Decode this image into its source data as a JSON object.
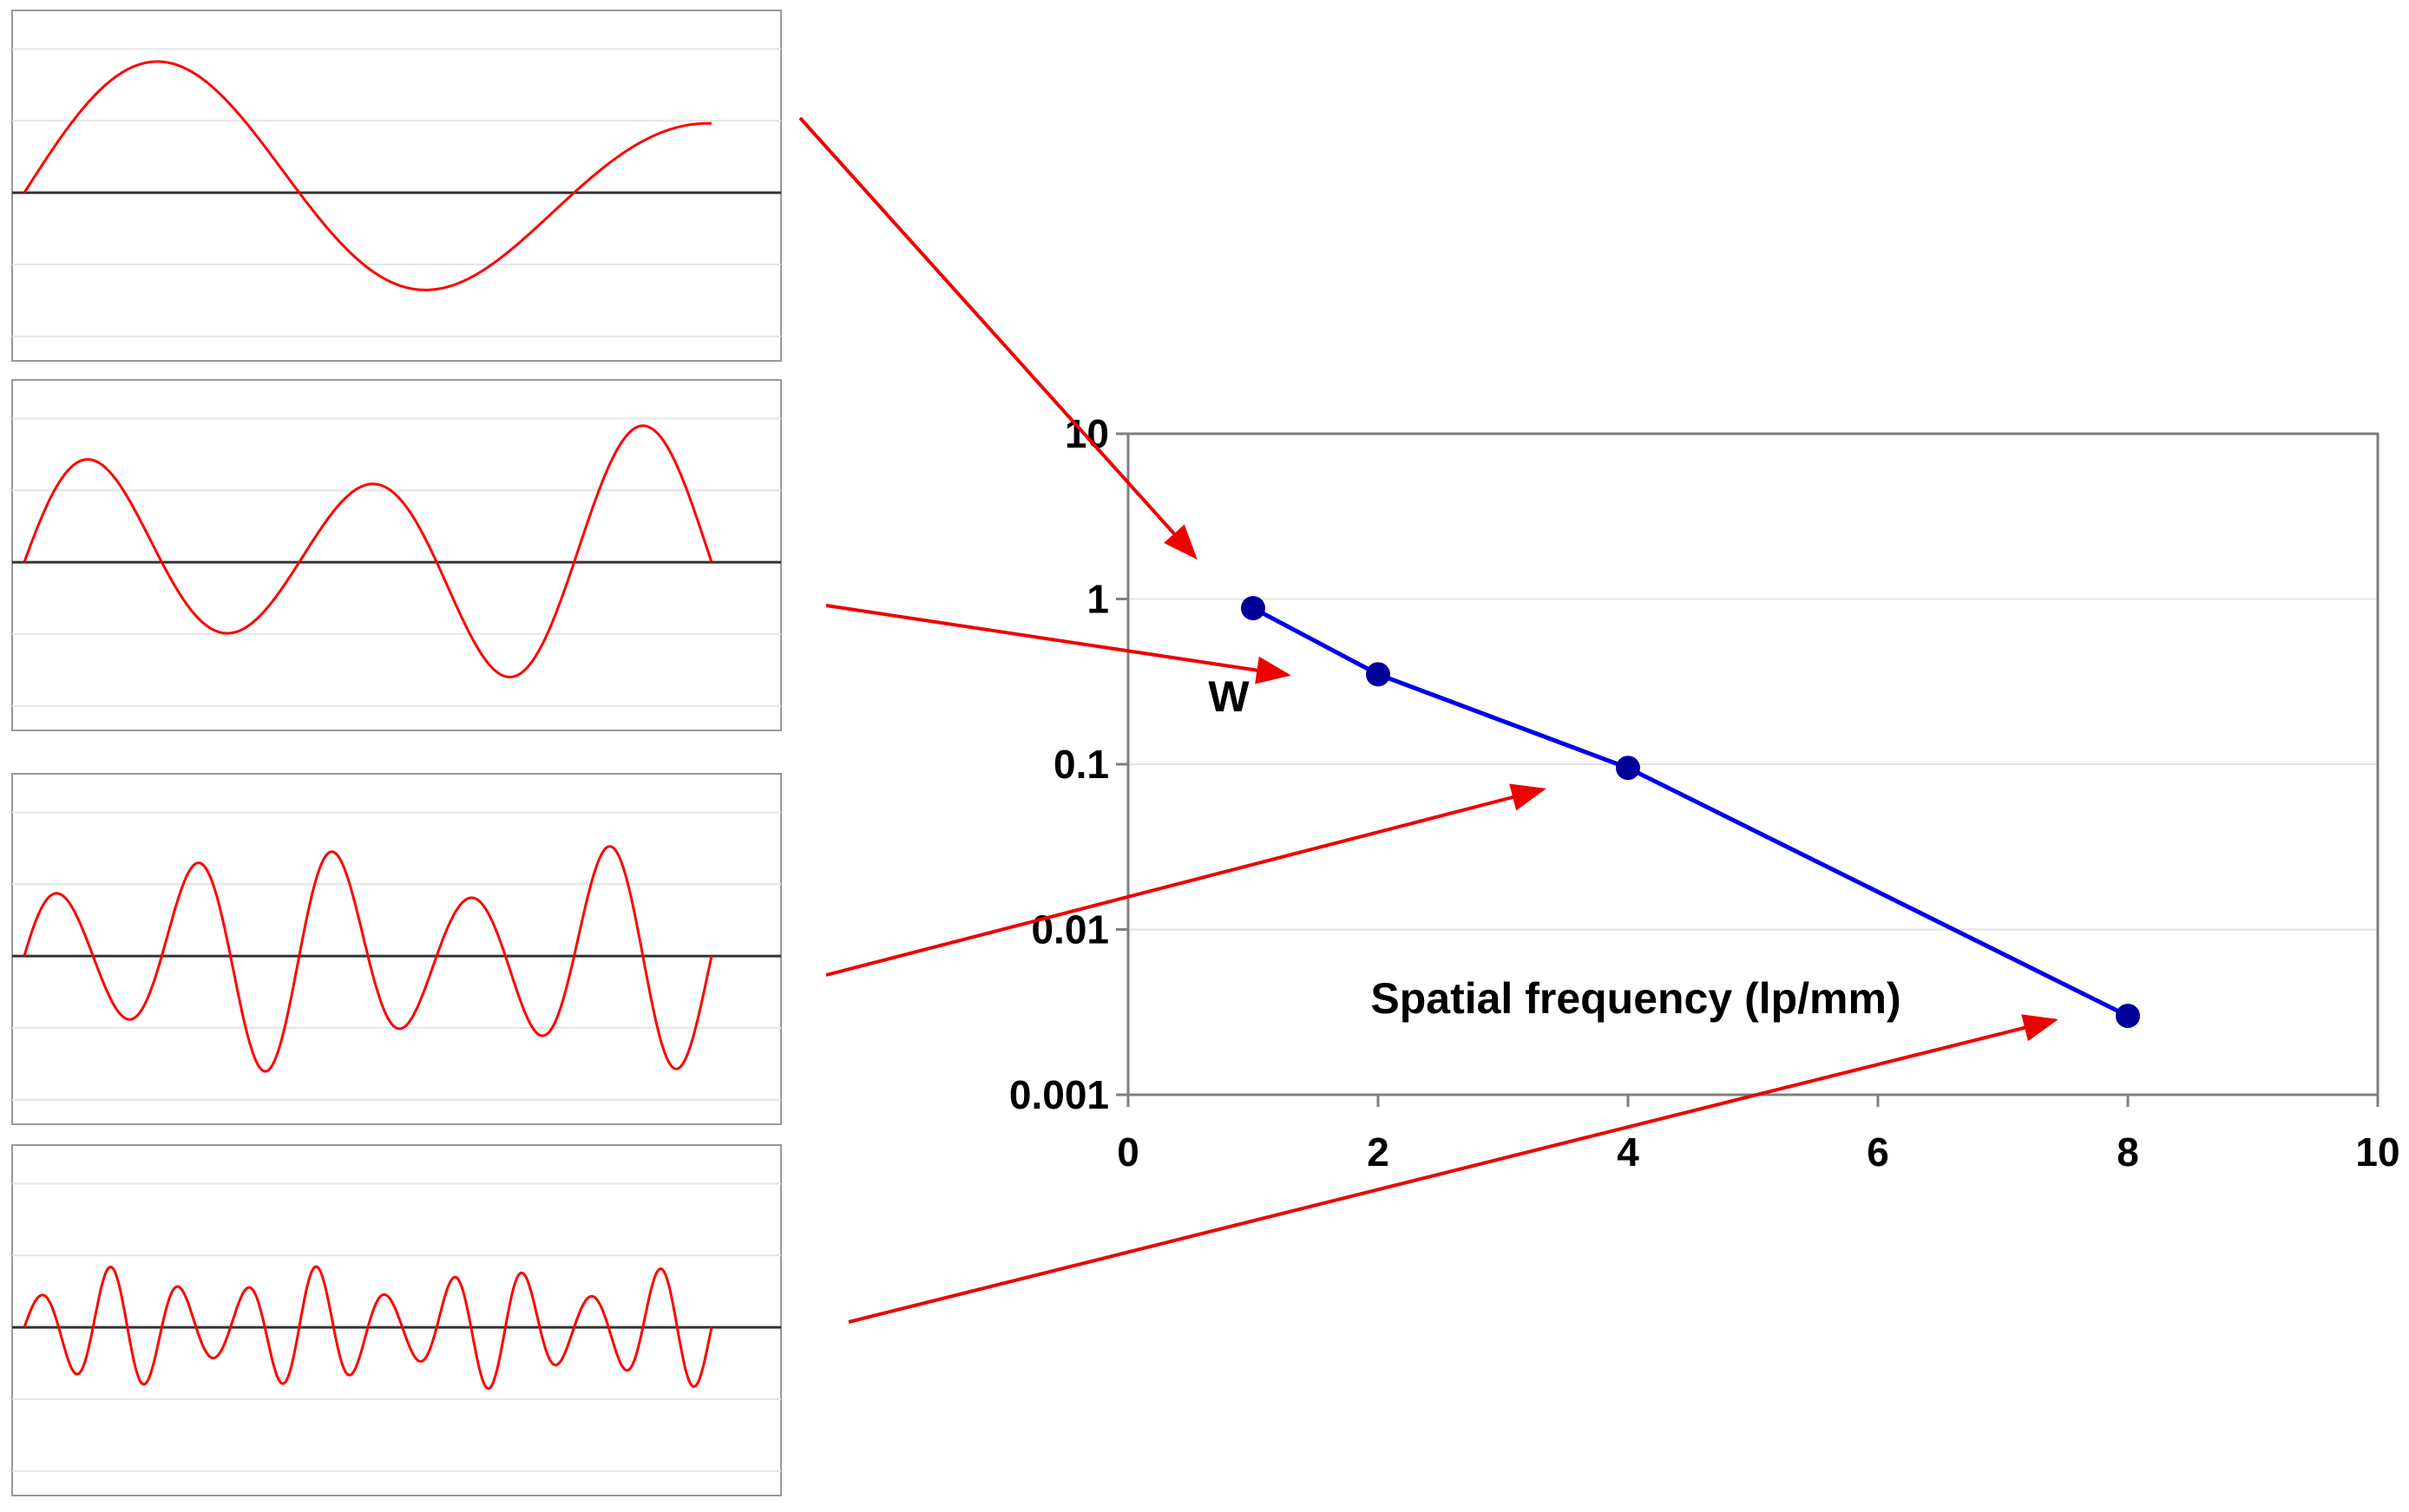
{
  "chart_data": [
    {
      "type": "line",
      "title": "",
      "xlabel": "Spatial frequency (lp/mm)",
      "ylabel": "",
      "annotation": "W",
      "x": [
        1,
        2,
        4,
        8
      ],
      "series": [
        {
          "values": [
            0.88,
            0.35,
            0.095,
            0.003
          ]
        }
      ],
      "xlim": [
        0,
        10
      ],
      "ylim": [
        0.001,
        10
      ],
      "y_scale": "log",
      "x_ticks": [
        0,
        2,
        4,
        6,
        8,
        10
      ],
      "x_tick_labels": [
        "0",
        "2",
        "4",
        "6",
        "8",
        "10"
      ],
      "y_ticks": [
        10,
        1,
        0.1,
        0.01,
        0.001
      ],
      "y_tick_labels": [
        "10",
        "1",
        "0.1",
        "0.01",
        "0.001"
      ],
      "grid": true,
      "legend": "none",
      "colors": {
        "series": "#0000ee",
        "markers": "#000099",
        "grid": "#e3e3e3",
        "frame": "#7f7f7f"
      }
    },
    {
      "type": "line",
      "description_free": true,
      "panels": [
        {
          "cycles": 1.25,
          "amplitude": 1.0
        },
        {
          "cycles": 2.5,
          "amplitude": 1.0
        },
        {
          "cycles": 5,
          "amplitude": 0.85
        },
        {
          "cycles": 10,
          "amplitude": 0.45
        }
      ],
      "colors": {
        "wave": "#ff0000",
        "axis": "#333333",
        "arrow": "#ee0000"
      }
    }
  ]
}
